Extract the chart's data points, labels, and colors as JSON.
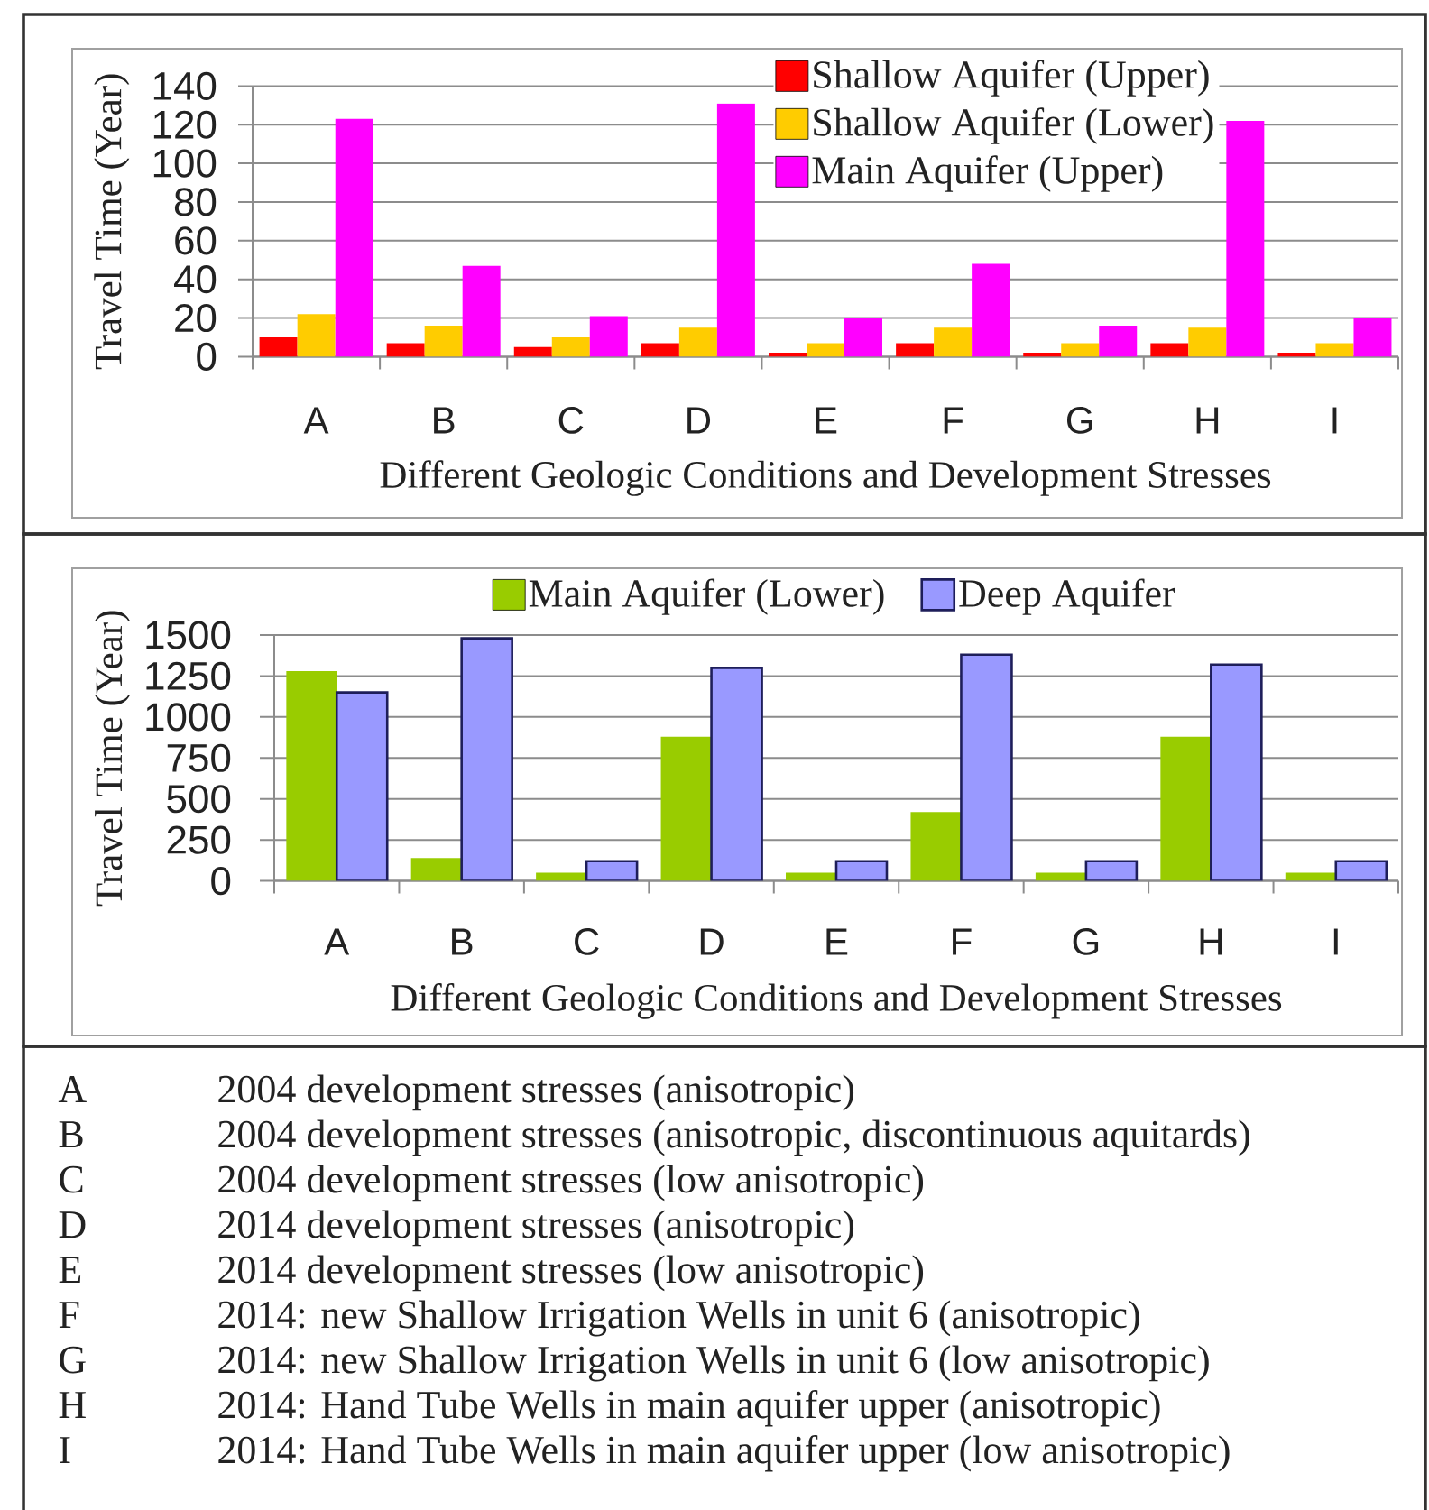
{
  "chart_data": [
    {
      "type": "bar",
      "ylabel": "Travel Time (Year)",
      "xlabel": "Different Geologic Conditions and Development Stresses",
      "categories": [
        "A",
        "B",
        "C",
        "D",
        "E",
        "F",
        "G",
        "H",
        "I"
      ],
      "series": [
        {
          "name": "Shallow Aquifer (Upper)",
          "color": "#ff0000",
          "values": [
            10,
            7,
            5,
            7,
            2,
            7,
            2,
            7,
            2
          ]
        },
        {
          "name": "Shallow Aquifer (Lower)",
          "color": "#ffcc00",
          "values": [
            22,
            16,
            10,
            15,
            7,
            15,
            7,
            15,
            7
          ]
        },
        {
          "name": "Main Aquifer (Upper)",
          "color": "#ff00ff",
          "values": [
            123,
            47,
            21,
            131,
            20,
            48,
            16,
            122,
            20
          ]
        }
      ],
      "ylim": [
        0,
        140
      ],
      "yticks": [
        0,
        20,
        40,
        60,
        80,
        100,
        120,
        140
      ],
      "grid": "y",
      "legend": "top right"
    },
    {
      "type": "bar",
      "ylabel": "Travel Time (Year)",
      "xlabel": "Different Geologic Conditions and Development Stresses",
      "categories": [
        "A",
        "B",
        "C",
        "D",
        "E",
        "F",
        "G",
        "H",
        "I"
      ],
      "series": [
        {
          "name": "Main Aquifer (Lower)",
          "color": "#99cc00",
          "values": [
            1280,
            140,
            50,
            880,
            50,
            420,
            50,
            880,
            50
          ]
        },
        {
          "name": "Deep Aquifer",
          "color": "#9999ff",
          "values": [
            1150,
            1480,
            120,
            1300,
            120,
            1380,
            120,
            1320,
            120
          ]
        }
      ],
      "ylim": [
        0,
        1500
      ],
      "yticks": [
        0,
        250,
        500,
        750,
        1000,
        1250,
        1500
      ],
      "grid": "y",
      "legend": "top"
    },
    {
      "type": "other",
      "categories": [
        "A",
        "B",
        "C",
        "D",
        "E",
        "F",
        "G",
        "H",
        "I"
      ],
      "annotations": [
        "2004 development stresses (anisotropic)",
        "2004 development stresses (anisotropic, discontinuous aquitards)",
        "2004 development stresses (low anisotropic)",
        "2014 development stresses (anisotropic)",
        "2014 development stresses (low anisotropic)",
        "2014: new Shallow Irrigation Wells in unit 6 (anisotropic)",
        "2014: new Shallow Irrigation Wells in unit 6 (low anisotropic)",
        "2014: Hand Tube Wells in main aquifer upper (anisotropic)",
        "2014: Hand Tube Wells in main aquifer upper (low anisotropic)"
      ]
    }
  ]
}
